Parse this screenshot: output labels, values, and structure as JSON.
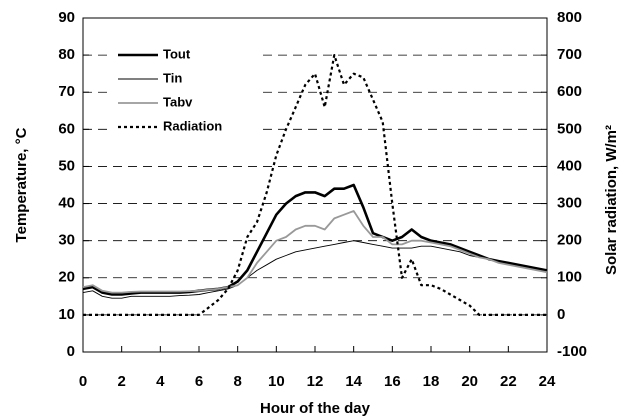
{
  "chart_data": {
    "type": "line",
    "xlabel": "Hour of the day",
    "ylabel": "Temperature, °C",
    "y2label": "Solar radiation, W/m²",
    "x": [
      0,
      0.5,
      1,
      1.5,
      2,
      2.5,
      3,
      3.5,
      4,
      4.5,
      5,
      5.5,
      6,
      6.5,
      7,
      7.5,
      8,
      8.5,
      9,
      9.5,
      10,
      10.5,
      11,
      11.5,
      12,
      12.5,
      13,
      13.5,
      14,
      14.5,
      15,
      15.5,
      16,
      16.5,
      17,
      17.5,
      18,
      18.5,
      19,
      19.5,
      20,
      20.5,
      21,
      21.5,
      22,
      22.5,
      23,
      23.5,
      24
    ],
    "series": [
      {
        "name": "Tout",
        "color": "#000000",
        "line_width": 2.6,
        "dotted": false,
        "values": [
          17,
          17.5,
          16,
          15.5,
          15.5,
          15.8,
          16,
          16,
          16,
          16,
          16,
          16.2,
          16.5,
          16.8,
          17,
          17.5,
          19,
          22,
          27,
          32,
          37,
          40,
          42,
          43,
          43,
          42,
          44,
          44,
          45,
          39,
          32,
          31,
          30,
          31,
          33,
          31,
          30,
          29.5,
          29,
          28,
          27,
          26,
          25,
          24.5,
          24,
          23.5,
          23,
          22.5,
          22
        ]
      },
      {
        "name": "Tin",
        "color": "#000000",
        "line_width": 0.9,
        "dotted": false,
        "values": [
          16,
          16.5,
          15,
          14.5,
          14.5,
          15,
          15,
          15,
          15,
          15,
          15.2,
          15.3,
          15.5,
          16,
          16.5,
          17,
          18,
          20,
          22,
          23.5,
          25,
          26,
          27,
          27.5,
          28,
          28.5,
          29,
          29.5,
          30,
          29.5,
          29,
          28.5,
          28,
          28,
          28,
          28.5,
          28.5,
          28,
          27.5,
          27,
          26,
          25.5,
          25,
          24,
          23.5,
          23,
          22.5,
          22,
          21.5
        ]
      },
      {
        "name": "Tabv",
        "color": "#999999",
        "line_width": 1.8,
        "dotted": false,
        "values": [
          17.5,
          18,
          16.5,
          16,
          16,
          16.2,
          16.3,
          16.3,
          16.3,
          16.3,
          16.3,
          16.4,
          16.5,
          16.8,
          17,
          17.5,
          18,
          20,
          24,
          27,
          30,
          31,
          33,
          34,
          34,
          33,
          36,
          37,
          38,
          34,
          31,
          31,
          29,
          29,
          30,
          30,
          29.5,
          29,
          28.5,
          27.5,
          26.5,
          25.5,
          25,
          24,
          23.5,
          23,
          22.5,
          22,
          21.5
        ]
      },
      {
        "name": "Radiation",
        "color": "#000000",
        "line_width": 2.2,
        "dotted": true,
        "axis": "y2",
        "values": [
          0,
          0,
          0,
          0,
          0,
          0,
          0,
          0,
          0,
          0,
          0,
          0,
          0,
          20,
          40,
          70,
          120,
          210,
          250,
          330,
          430,
          500,
          560,
          620,
          650,
          560,
          700,
          620,
          650,
          640,
          580,
          520,
          300,
          100,
          150,
          80,
          80,
          70,
          55,
          40,
          25,
          0,
          0,
          0,
          0,
          0,
          0,
          0,
          0
        ]
      }
    ],
    "xlim": [
      0,
      24
    ],
    "xticks": [
      0,
      2,
      4,
      6,
      8,
      10,
      12,
      14,
      16,
      18,
      20,
      22,
      24
    ],
    "ylim": [
      0,
      90
    ],
    "yticks": [
      0,
      10,
      20,
      30,
      40,
      50,
      60,
      70,
      80,
      90
    ],
    "y2lim": [
      -100,
      800
    ],
    "y2ticks": [
      -100,
      0,
      100,
      200,
      300,
      400,
      500,
      600,
      700,
      800
    ],
    "grid": true,
    "legend": "upper left"
  }
}
